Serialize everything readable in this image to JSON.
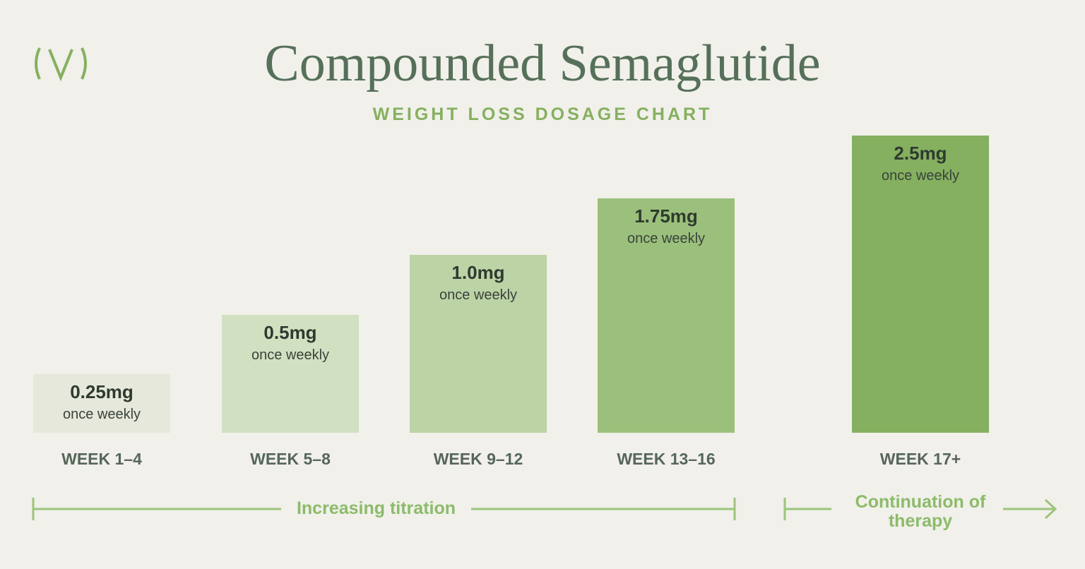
{
  "header": {
    "title": "Compounded Semaglutide",
    "subtitle": "WEIGHT LOSS DOSAGE CHART"
  },
  "stages": [
    {
      "dose": "0.25mg",
      "frequency": "once weekly",
      "week": "WEEK 1–4"
    },
    {
      "dose": "0.5mg",
      "frequency": "once weekly",
      "week": "WEEK 5–8"
    },
    {
      "dose": "1.0mg",
      "frequency": "once weekly",
      "week": "WEEK 9–12"
    },
    {
      "dose": "1.75mg",
      "frequency": "once weekly",
      "week": "WEEK 13–16"
    },
    {
      "dose": "2.5mg",
      "frequency": "once weekly",
      "week": "WEEK 17+"
    }
  ],
  "phases": {
    "titration": "Increasing titration",
    "continuation": "Continuation of therapy"
  }
}
